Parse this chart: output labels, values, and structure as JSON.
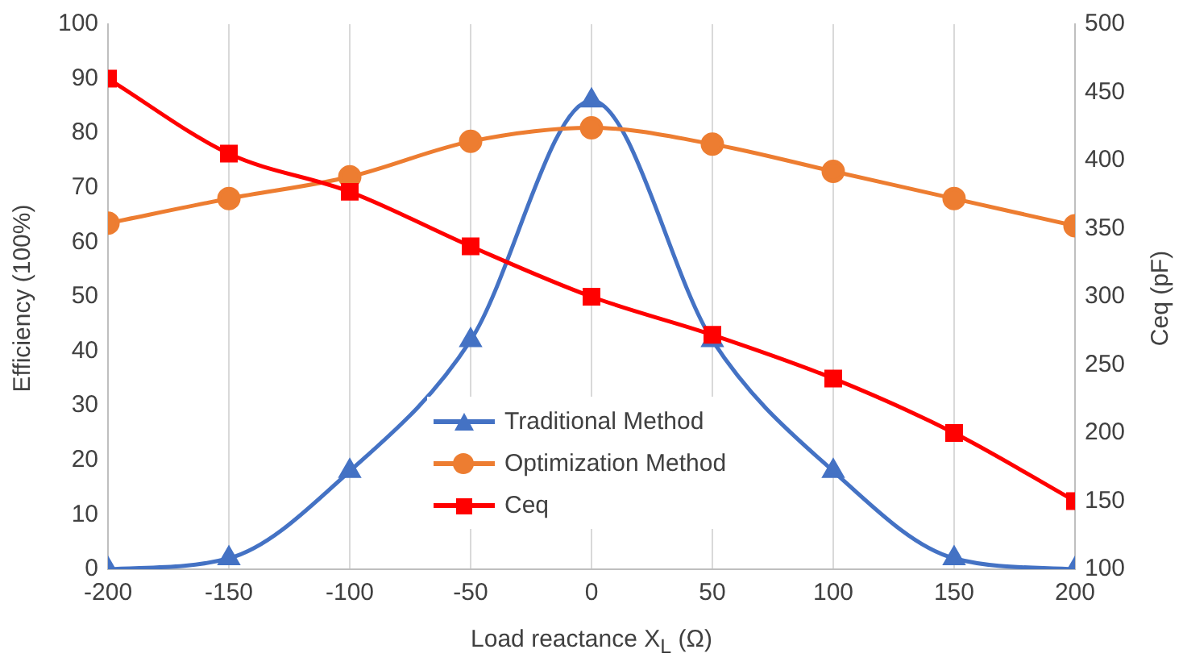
{
  "chart_data": {
    "type": "line",
    "xlabel": "Load reactance X$_{L}$ (Ω)",
    "ylabel": "Efficiency (100%)",
    "y2label": "Ceq (pF)",
    "x": [
      -200,
      -150,
      -100,
      -50,
      0,
      50,
      100,
      150,
      200
    ],
    "xlim": [
      -200,
      200
    ],
    "xticks": [
      -200,
      -150,
      -100,
      -50,
      0,
      50,
      100,
      150,
      200
    ],
    "ylim": [
      0,
      100
    ],
    "yticks": [
      0,
      10,
      20,
      30,
      40,
      50,
      60,
      70,
      80,
      90,
      100
    ],
    "y2lim": [
      100,
      500
    ],
    "y2ticks": [
      100,
      150,
      200,
      250,
      300,
      350,
      400,
      450,
      500
    ],
    "grid": "x",
    "legend": "bottom",
    "line_style": "solid",
    "series": [
      {
        "name": "Traditional Method",
        "color": "#4472c4",
        "marker": "triangle",
        "values": [
          0,
          2,
          18,
          42,
          86,
          42,
          18,
          2,
          0
        ]
      },
      {
        "name": "Optimization Method",
        "color": "#ed7d31",
        "marker": "circle",
        "values": [
          63.5,
          68,
          72,
          78.5,
          81,
          78,
          73,
          68,
          63
        ]
      },
      {
        "name": "Ceq",
        "color": "#ff0000",
        "marker": "square",
        "axis": "y2",
        "values": [
          460,
          405,
          377,
          337,
          300,
          272,
          240,
          200,
          150
        ]
      }
    ]
  }
}
